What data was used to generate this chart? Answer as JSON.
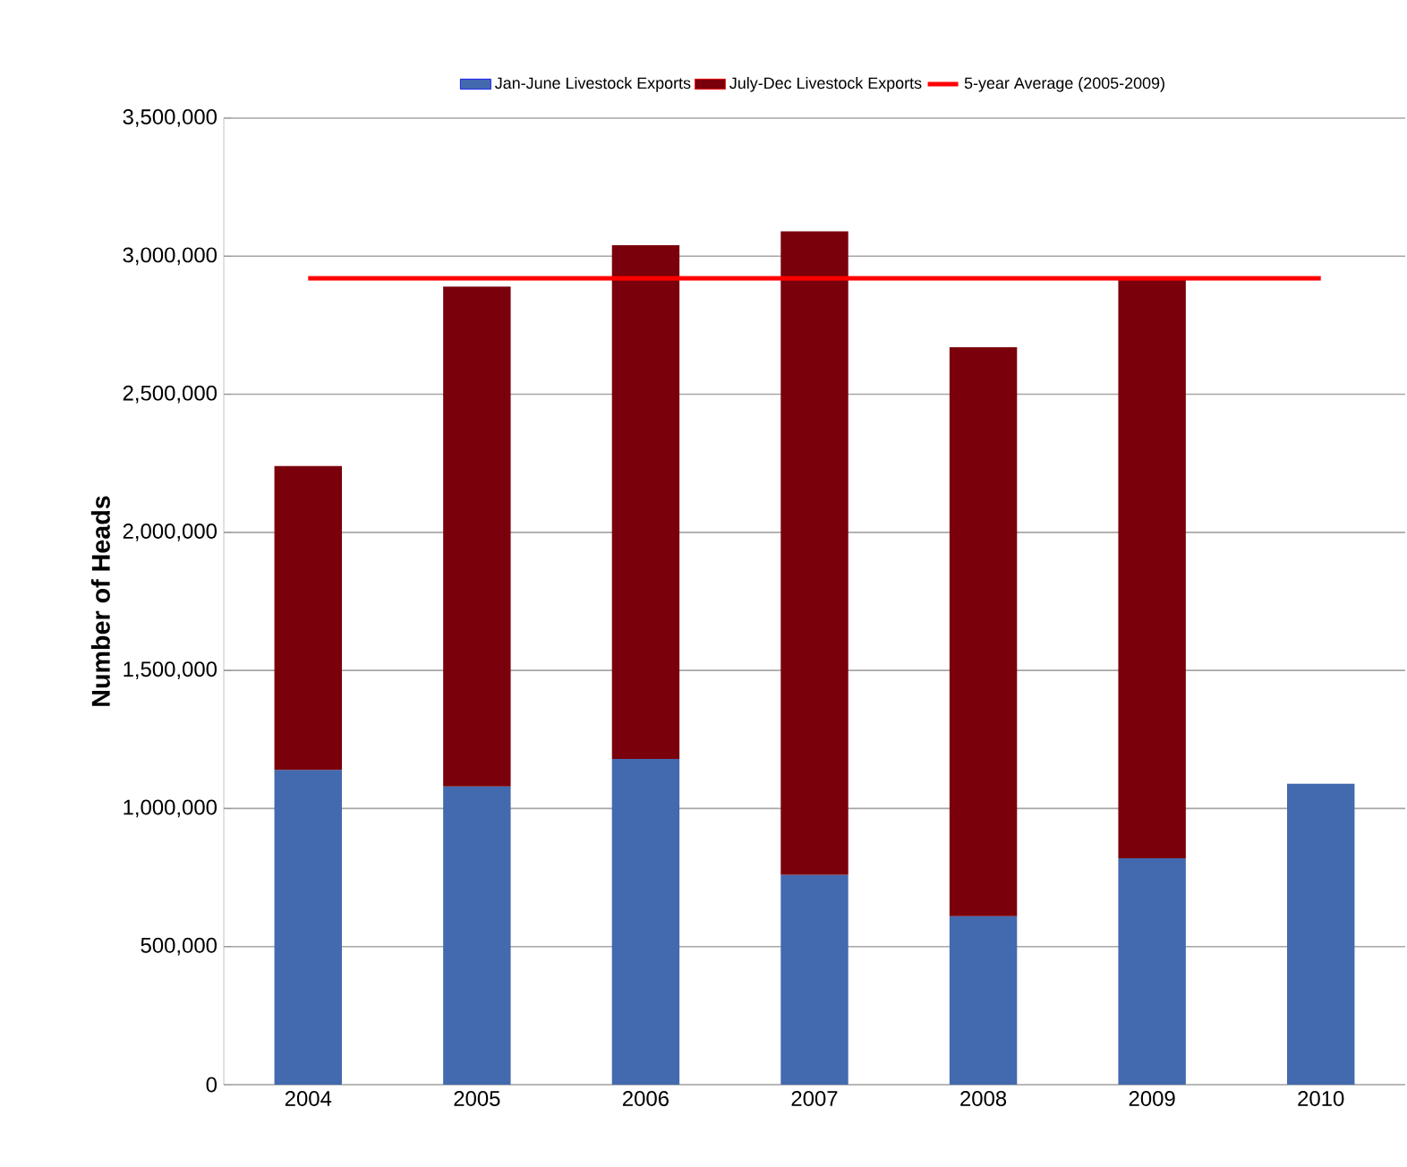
{
  "chart_data": {
    "type": "bar",
    "stacked": true,
    "ylabel": "Number of Heads",
    "categories": [
      "2004",
      "2005",
      "2006",
      "2007",
      "2008",
      "2009",
      "2010"
    ],
    "series": [
      {
        "name": "Jan-June Livestock Exports",
        "color": "#4369ae",
        "values": [
          1140000,
          1080000,
          1180000,
          760000,
          610000,
          820000,
          1090000
        ]
      },
      {
        "name": "July-Dec Livestock Exports",
        "color": "#7a000b",
        "values": [
          1100000,
          1810000,
          1860000,
          2330000,
          2060000,
          2100000,
          null
        ]
      },
      {
        "name": "5-year Average (2005-2009)",
        "type": "line",
        "color": "#ff0000",
        "values": [
          2920000,
          2920000,
          2920000,
          2920000,
          2920000,
          2920000,
          2920000
        ]
      }
    ],
    "ylim": [
      0,
      3500000
    ],
    "yticks": [
      {
        "value": 0,
        "label": "0"
      },
      {
        "value": 500000,
        "label": "500,000"
      },
      {
        "value": 1000000,
        "label": "1,000,000"
      },
      {
        "value": 1500000,
        "label": "1,500,000"
      },
      {
        "value": 2000000,
        "label": "2,000,000"
      },
      {
        "value": 2500000,
        "label": "2,500,000"
      },
      {
        "value": 3000000,
        "label": "3,000,000"
      },
      {
        "value": 3500000,
        "label": "3,500,000"
      }
    ],
    "grid": "y",
    "legend": "top",
    "marker": "none",
    "line_style": "solid"
  }
}
